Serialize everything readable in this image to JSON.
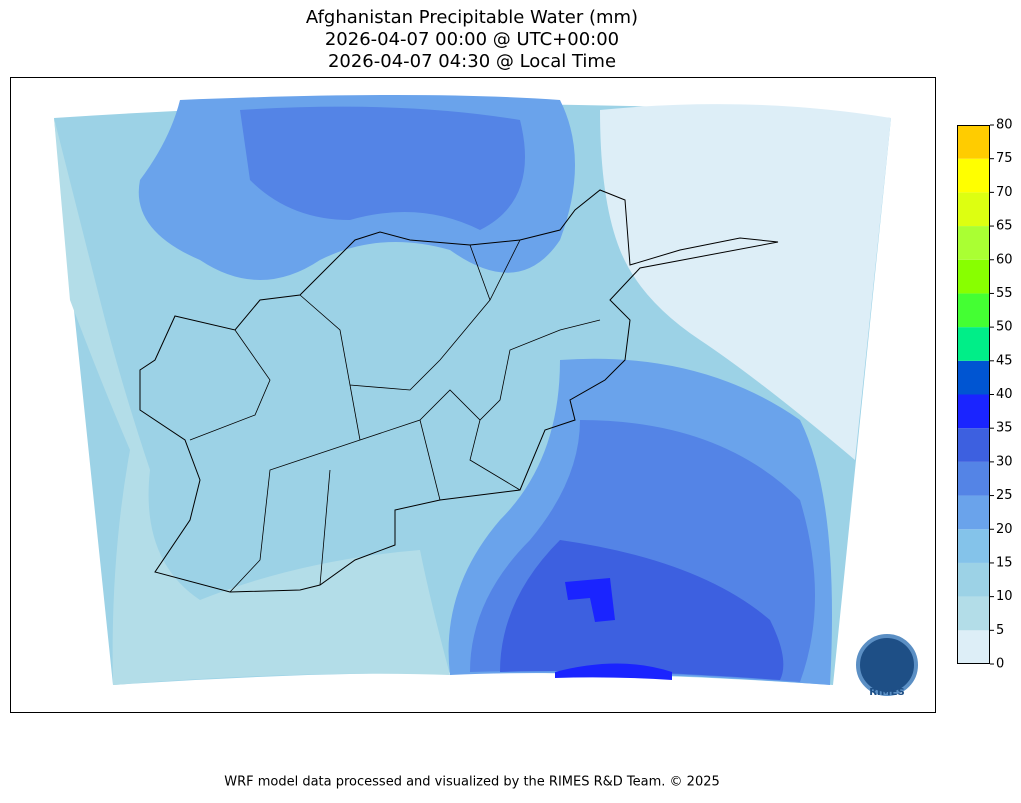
{
  "title": [
    "Afghanistan Precipitable Water (mm)",
    "2026-04-07 00:00 @ UTC+00:00",
    "2026-04-07 04:30 @ Local Time"
  ],
  "colorbar": {
    "lim": [
      0,
      80
    ],
    "ticks": [
      0,
      5,
      10,
      15,
      20,
      25,
      30,
      35,
      40,
      45,
      50,
      55,
      60,
      65,
      70,
      75,
      80
    ],
    "colors": [
      "#ddeef7",
      "#b3dde8",
      "#9cd2e6",
      "#84c3ea",
      "#6aa3eb",
      "#5484e6",
      "#3d60e0",
      "#1a24ff",
      "#0055d2",
      "#00ee88",
      "#44ff33",
      "#88ff00",
      "#aaff33",
      "#ddff11",
      "#ffff00",
      "#ffcc00"
    ]
  },
  "logo": "RIMES",
  "footer": "WRF model data processed and visualized by the RIMES R&D Team. © 2025"
}
